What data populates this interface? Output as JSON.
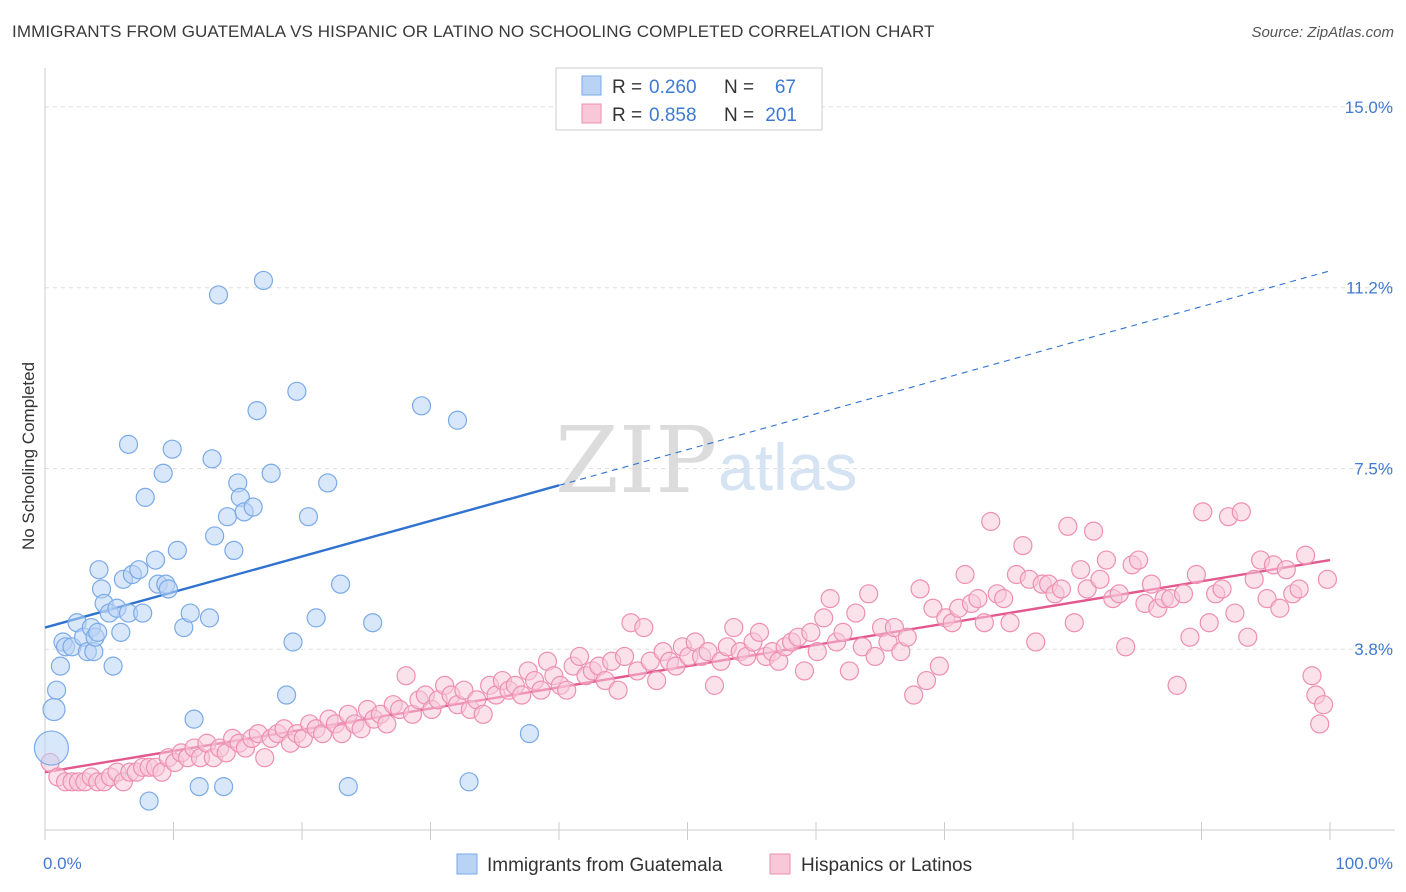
{
  "title": "IMMIGRANTS FROM GUATEMALA VS HISPANIC OR LATINO NO SCHOOLING COMPLETED CORRELATION CHART",
  "source": "Source: ZipAtlas.com",
  "watermark": {
    "zip": "ZIP",
    "atlas": "atlas"
  },
  "chart_data": {
    "type": "scatter",
    "ylabel": "No Schooling Completed",
    "x_tick_labels": [
      "0.0%",
      "100.0%"
    ],
    "y_tick_labels": [
      "15.0%",
      "11.2%",
      "7.5%",
      "3.8%"
    ],
    "y_tick_values": [
      15.0,
      11.25,
      7.5,
      3.75
    ],
    "xlim": [
      0,
      100
    ],
    "ylim": [
      0,
      15.6
    ],
    "grid": true,
    "legend_position": "top-center",
    "series": [
      {
        "name": "Immigrants from Guatemala",
        "color": "#7aaae8",
        "fill": "#b9d3f5",
        "line_color": "#2f72cf",
        "R": "0.260",
        "N": "67",
        "trend": {
          "x0": 0,
          "y0": 4.2,
          "x1": 40,
          "y1": 7.15,
          "dash_to_x": 100,
          "dash_to_y": 11.6
        },
        "points": [
          [
            0.5,
            1.7
          ],
          [
            0.7,
            2.5
          ],
          [
            0.9,
            2.9
          ],
          [
            1.2,
            3.4
          ],
          [
            1.4,
            3.9
          ],
          [
            1.6,
            3.8
          ],
          [
            2.1,
            3.8
          ],
          [
            2.5,
            4.3
          ],
          [
            3.0,
            4.0
          ],
          [
            3.3,
            3.7
          ],
          [
            3.6,
            4.2
          ],
          [
            3.8,
            3.7
          ],
          [
            3.9,
            4.0
          ],
          [
            4.1,
            4.1
          ],
          [
            4.2,
            5.4
          ],
          [
            4.4,
            5.0
          ],
          [
            4.6,
            4.7
          ],
          [
            5.0,
            4.5
          ],
          [
            5.3,
            3.4
          ],
          [
            5.6,
            4.6
          ],
          [
            5.9,
            4.1
          ],
          [
            6.1,
            5.2
          ],
          [
            6.5,
            4.5
          ],
          [
            6.8,
            5.3
          ],
          [
            7.3,
            5.4
          ],
          [
            7.6,
            4.5
          ],
          [
            6.5,
            8.0
          ],
          [
            7.8,
            6.9
          ],
          [
            8.1,
            0.6
          ],
          [
            8.6,
            5.6
          ],
          [
            8.8,
            5.1
          ],
          [
            9.2,
            7.4
          ],
          [
            9.4,
            5.1
          ],
          [
            9.6,
            5.0
          ],
          [
            9.9,
            7.9
          ],
          [
            10.3,
            5.8
          ],
          [
            10.8,
            4.2
          ],
          [
            11.3,
            4.5
          ],
          [
            11.6,
            2.3
          ],
          [
            12.0,
            0.9
          ],
          [
            12.8,
            4.4
          ],
          [
            13.0,
            7.7
          ],
          [
            13.2,
            6.1
          ],
          [
            13.5,
            11.1
          ],
          [
            13.9,
            0.9
          ],
          [
            14.2,
            6.5
          ],
          [
            14.7,
            5.8
          ],
          [
            15.0,
            7.2
          ],
          [
            15.2,
            6.9
          ],
          [
            15.5,
            6.6
          ],
          [
            16.2,
            6.7
          ],
          [
            16.5,
            8.7
          ],
          [
            17.0,
            11.4
          ],
          [
            17.6,
            7.4
          ],
          [
            18.8,
            2.8
          ],
          [
            19.3,
            3.9
          ],
          [
            19.6,
            9.1
          ],
          [
            20.5,
            6.5
          ],
          [
            21.1,
            4.4
          ],
          [
            22.0,
            7.2
          ],
          [
            23.0,
            5.1
          ],
          [
            23.6,
            0.9
          ],
          [
            25.5,
            4.3
          ],
          [
            29.3,
            8.8
          ],
          [
            32.1,
            8.5
          ],
          [
            33.0,
            1.0
          ],
          [
            37.7,
            2.0
          ]
        ],
        "sizes": {
          "0": 34,
          "1": 22,
          "2": 18
        }
      },
      {
        "name": "Hispanics or Latinos",
        "color": "#ee8fb0",
        "fill": "#f8c8d8",
        "line_color": "#e2588f",
        "R": "0.858",
        "N": "201",
        "trend": {
          "x0": 0,
          "y0": 1.2,
          "x1": 100,
          "y1": 5.6
        },
        "points": [
          [
            0.4,
            1.4
          ],
          [
            1.0,
            1.1
          ],
          [
            1.6,
            1.0
          ],
          [
            2.1,
            1.0
          ],
          [
            2.6,
            1.0
          ],
          [
            3.1,
            1.0
          ],
          [
            3.6,
            1.1
          ],
          [
            4.1,
            1.0
          ],
          [
            4.6,
            1.0
          ],
          [
            5.1,
            1.1
          ],
          [
            5.6,
            1.2
          ],
          [
            6.1,
            1.0
          ],
          [
            6.6,
            1.2
          ],
          [
            7.1,
            1.2
          ],
          [
            7.6,
            1.3
          ],
          [
            8.1,
            1.3
          ],
          [
            8.6,
            1.3
          ],
          [
            9.1,
            1.2
          ],
          [
            9.6,
            1.5
          ],
          [
            10.1,
            1.4
          ],
          [
            10.6,
            1.6
          ],
          [
            11.1,
            1.5
          ],
          [
            11.6,
            1.7
          ],
          [
            12.1,
            1.5
          ],
          [
            12.6,
            1.8
          ],
          [
            13.1,
            1.5
          ],
          [
            13.6,
            1.7
          ],
          [
            14.1,
            1.6
          ],
          [
            14.6,
            1.9
          ],
          [
            15.1,
            1.8
          ],
          [
            15.6,
            1.7
          ],
          [
            16.1,
            1.9
          ],
          [
            16.6,
            2.0
          ],
          [
            17.1,
            1.5
          ],
          [
            17.6,
            1.9
          ],
          [
            18.1,
            2.0
          ],
          [
            18.6,
            2.1
          ],
          [
            19.1,
            1.8
          ],
          [
            19.6,
            2.0
          ],
          [
            20.1,
            1.9
          ],
          [
            20.6,
            2.2
          ],
          [
            21.1,
            2.1
          ],
          [
            21.6,
            2.0
          ],
          [
            22.1,
            2.3
          ],
          [
            22.6,
            2.2
          ],
          [
            23.1,
            2.0
          ],
          [
            23.6,
            2.4
          ],
          [
            24.1,
            2.2
          ],
          [
            24.6,
            2.1
          ],
          [
            25.1,
            2.5
          ],
          [
            25.6,
            2.3
          ],
          [
            26.1,
            2.4
          ],
          [
            26.6,
            2.2
          ],
          [
            27.1,
            2.6
          ],
          [
            27.6,
            2.5
          ],
          [
            28.1,
            3.2
          ],
          [
            28.6,
            2.4
          ],
          [
            29.1,
            2.7
          ],
          [
            29.6,
            2.8
          ],
          [
            30.1,
            2.5
          ],
          [
            30.6,
            2.7
          ],
          [
            31.1,
            3.0
          ],
          [
            31.6,
            2.8
          ],
          [
            32.1,
            2.6
          ],
          [
            32.6,
            2.9
          ],
          [
            33.1,
            2.5
          ],
          [
            33.6,
            2.7
          ],
          [
            34.1,
            2.4
          ],
          [
            34.6,
            3.0
          ],
          [
            35.1,
            2.8
          ],
          [
            35.6,
            3.1
          ],
          [
            36.1,
            2.9
          ],
          [
            36.6,
            3.0
          ],
          [
            37.1,
            2.8
          ],
          [
            37.6,
            3.3
          ],
          [
            38.1,
            3.1
          ],
          [
            38.6,
            2.9
          ],
          [
            39.1,
            3.5
          ],
          [
            39.6,
            3.2
          ],
          [
            40.1,
            3.0
          ],
          [
            40.6,
            2.9
          ],
          [
            41.1,
            3.4
          ],
          [
            41.6,
            3.6
          ],
          [
            42.1,
            3.2
          ],
          [
            42.6,
            3.3
          ],
          [
            43.1,
            3.4
          ],
          [
            43.6,
            3.1
          ],
          [
            44.1,
            3.5
          ],
          [
            44.6,
            2.9
          ],
          [
            45.1,
            3.6
          ],
          [
            45.6,
            4.3
          ],
          [
            46.1,
            3.3
          ],
          [
            46.6,
            4.2
          ],
          [
            47.1,
            3.5
          ],
          [
            47.6,
            3.1
          ],
          [
            48.1,
            3.7
          ],
          [
            48.6,
            3.5
          ],
          [
            49.1,
            3.4
          ],
          [
            49.6,
            3.8
          ],
          [
            50.1,
            3.6
          ],
          [
            50.6,
            3.9
          ],
          [
            51.1,
            3.6
          ],
          [
            51.6,
            3.7
          ],
          [
            52.1,
            3.0
          ],
          [
            52.6,
            3.5
          ],
          [
            53.1,
            3.8
          ],
          [
            53.6,
            4.2
          ],
          [
            54.1,
            3.7
          ],
          [
            54.6,
            3.6
          ],
          [
            55.1,
            3.9
          ],
          [
            55.6,
            4.1
          ],
          [
            56.1,
            3.6
          ],
          [
            56.6,
            3.7
          ],
          [
            57.1,
            3.5
          ],
          [
            57.6,
            3.8
          ],
          [
            58.1,
            3.9
          ],
          [
            58.6,
            4.0
          ],
          [
            59.1,
            3.3
          ],
          [
            59.6,
            4.1
          ],
          [
            60.1,
            3.7
          ],
          [
            60.6,
            4.4
          ],
          [
            61.1,
            4.8
          ],
          [
            61.6,
            3.9
          ],
          [
            62.1,
            4.1
          ],
          [
            62.6,
            3.3
          ],
          [
            63.1,
            4.5
          ],
          [
            63.6,
            3.8
          ],
          [
            64.1,
            4.9
          ],
          [
            64.6,
            3.6
          ],
          [
            65.1,
            4.2
          ],
          [
            65.6,
            3.9
          ],
          [
            66.1,
            4.2
          ],
          [
            66.6,
            3.7
          ],
          [
            67.1,
            4.0
          ],
          [
            67.6,
            2.8
          ],
          [
            68.1,
            5.0
          ],
          [
            68.6,
            3.1
          ],
          [
            69.1,
            4.6
          ],
          [
            69.6,
            3.4
          ],
          [
            70.1,
            4.4
          ],
          [
            70.6,
            4.3
          ],
          [
            71.1,
            4.6
          ],
          [
            71.6,
            5.3
          ],
          [
            72.1,
            4.7
          ],
          [
            72.6,
            4.8
          ],
          [
            73.1,
            4.3
          ],
          [
            73.6,
            6.4
          ],
          [
            74.1,
            4.9
          ],
          [
            74.6,
            4.8
          ],
          [
            75.1,
            4.3
          ],
          [
            75.6,
            5.3
          ],
          [
            76.1,
            5.9
          ],
          [
            76.6,
            5.2
          ],
          [
            77.1,
            3.9
          ],
          [
            77.6,
            5.1
          ],
          [
            78.1,
            5.1
          ],
          [
            78.6,
            4.9
          ],
          [
            79.1,
            5.0
          ],
          [
            79.6,
            6.3
          ],
          [
            80.1,
            4.3
          ],
          [
            80.6,
            5.4
          ],
          [
            81.1,
            5.0
          ],
          [
            81.6,
            6.2
          ],
          [
            82.1,
            5.2
          ],
          [
            82.6,
            5.6
          ],
          [
            83.1,
            4.8
          ],
          [
            83.6,
            4.9
          ],
          [
            84.1,
            3.8
          ],
          [
            84.6,
            5.5
          ],
          [
            85.1,
            5.6
          ],
          [
            85.6,
            4.7
          ],
          [
            86.1,
            5.1
          ],
          [
            86.6,
            4.6
          ],
          [
            87.1,
            4.8
          ],
          [
            87.6,
            4.8
          ],
          [
            88.1,
            3.0
          ],
          [
            88.6,
            4.9
          ],
          [
            89.1,
            4.0
          ],
          [
            89.6,
            5.3
          ],
          [
            90.1,
            6.6
          ],
          [
            90.6,
            4.3
          ],
          [
            91.1,
            4.9
          ],
          [
            91.6,
            5.0
          ],
          [
            92.1,
            6.5
          ],
          [
            92.6,
            4.5
          ],
          [
            93.1,
            6.6
          ],
          [
            93.6,
            4.0
          ],
          [
            94.1,
            5.2
          ],
          [
            94.6,
            5.6
          ],
          [
            95.1,
            4.8
          ],
          [
            95.6,
            5.5
          ],
          [
            96.1,
            4.6
          ],
          [
            96.6,
            5.4
          ],
          [
            97.1,
            4.9
          ],
          [
            97.6,
            5.0
          ],
          [
            98.1,
            5.7
          ],
          [
            98.6,
            3.2
          ],
          [
            98.9,
            2.8
          ],
          [
            99.2,
            2.2
          ],
          [
            99.5,
            2.6
          ],
          [
            99.8,
            5.2
          ]
        ]
      }
    ]
  },
  "legend": {
    "r_label": "R =",
    "n_label": "N ="
  }
}
